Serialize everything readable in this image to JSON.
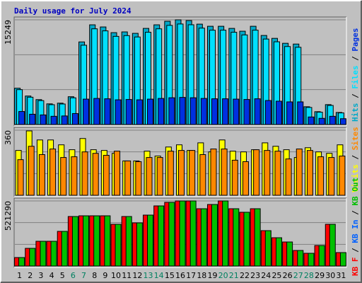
{
  "chart_data": [
    {
      "type": "bar",
      "title": "Daily usage for July 2024",
      "ylim": [
        0,
        15249
      ],
      "yticks": [
        15249
      ],
      "legend_separator": " / ",
      "series": [
        {
          "name": "Hits",
          "color": "#00a8c8",
          "values": [
            5290,
            4150,
            3630,
            3010,
            3110,
            4050,
            12030,
            14520,
            14210,
            13380,
            13490,
            13280,
            14000,
            14520,
            15040,
            15249,
            15140,
            14620,
            14310,
            14310,
            14000,
            13590,
            14310,
            12970,
            12550,
            11830,
            11720,
            2590,
            1870,
            2900,
            1760
          ]
        },
        {
          "name": "Files",
          "color": "#00e0ff",
          "values": [
            5080,
            3980,
            3480,
            2890,
            2990,
            3890,
            11550,
            13940,
            13640,
            12840,
            12950,
            12750,
            13440,
            13940,
            14440,
            14640,
            14530,
            14040,
            13740,
            13740,
            13440,
            13050,
            13740,
            12450,
            12050,
            11360,
            11250,
            2490,
            1800,
            2780,
            1690
          ]
        },
        {
          "name": "Pages",
          "color": "#0030e0",
          "values": [
            1900,
            1500,
            1400,
            1200,
            1250,
            1600,
            3700,
            3800,
            3750,
            3600,
            3650,
            3600,
            3700,
            3800,
            3900,
            3950,
            3900,
            3800,
            3750,
            3750,
            3700,
            3650,
            3750,
            3500,
            3400,
            3300,
            3300,
            1100,
            900,
            1200,
            850
          ]
        }
      ]
    },
    {
      "type": "bar",
      "ylim": [
        0,
        360
      ],
      "yticks": [
        360
      ],
      "legend_separator": " / ",
      "series": [
        {
          "name": "Visits",
          "color": "#ffff00",
          "values": [
            248,
            356,
            306,
            306,
            279,
            252,
            314,
            252,
            248,
            232,
            190,
            190,
            244,
            217,
            267,
            279,
            248,
            290,
            240,
            306,
            244,
            240,
            252,
            290,
            271,
            252,
            209,
            263,
            240,
            232,
            279
          ]
        },
        {
          "name": "Sites",
          "color": "#ff8800",
          "values": [
            197,
            271,
            225,
            256,
            209,
            213,
            240,
            232,
            221,
            244,
            190,
            186,
            209,
            209,
            244,
            248,
            248,
            225,
            256,
            256,
            194,
            186,
            252,
            248,
            244,
            201,
            256,
            248,
            213,
            209,
            217
          ]
        }
      ]
    },
    {
      "type": "bar",
      "ylim": [
        0,
        521290
      ],
      "yticks": [
        521290
      ],
      "legend_separator": " / ",
      "categories": [
        "1",
        "2",
        "3",
        "4",
        "5",
        "6",
        "7",
        "8",
        "9",
        "10",
        "11",
        "12",
        "13",
        "14",
        "15",
        "16",
        "17",
        "18",
        "19",
        "20",
        "21",
        "22",
        "23",
        "24",
        "25",
        "26",
        "27",
        "28",
        "29",
        "30",
        "31"
      ],
      "category_colors": [
        "#000000",
        "#000000",
        "#000000",
        "#000000",
        "#000000",
        "#008060",
        "#008060",
        "#000000",
        "#000000",
        "#000000",
        "#000000",
        "#000000",
        "#008060",
        "#008060",
        "#000000",
        "#000000",
        "#000000",
        "#000000",
        "#000000",
        "#008060",
        "#008060",
        "#000000",
        "#000000",
        "#000000",
        "#000000",
        "#000000",
        "#008060",
        "#008060",
        "#000000",
        "#000000",
        "#000000"
      ],
      "series": [
        {
          "name": "KB F",
          "color": "#ff0000",
          "values": [
            68000,
            141650,
            198310,
            198310,
            277640,
            396630,
            402300,
            402300,
            402300,
            334310,
            396630,
            345640,
            407970,
            481630,
            509960,
            521290,
            521290,
            458960,
            492960,
            521290,
            458960,
            430630,
            458960,
            283310,
            226650,
            192650,
            124660,
            101990,
            164320,
            334310,
            107660
          ]
        },
        {
          "name": "KB In",
          "color": "#0060ff",
          "values": [
            null,
            null,
            null,
            null,
            null,
            null,
            null,
            null,
            null,
            null,
            null,
            null,
            null,
            null,
            null,
            null,
            null,
            null,
            null,
            null,
            null,
            null,
            null,
            null,
            null,
            null,
            null,
            null,
            null,
            null,
            null
          ]
        },
        {
          "name": "KB Out",
          "color": "#00c000",
          "values": [
            68000,
            141650,
            198310,
            198310,
            277640,
            396630,
            402300,
            402300,
            402300,
            334310,
            396630,
            345640,
            407970,
            481630,
            509960,
            521290,
            521290,
            458960,
            492960,
            521290,
            458960,
            430630,
            458960,
            283310,
            226650,
            192650,
            124660,
            101990,
            164320,
            334310,
            107660
          ]
        }
      ]
    }
  ]
}
